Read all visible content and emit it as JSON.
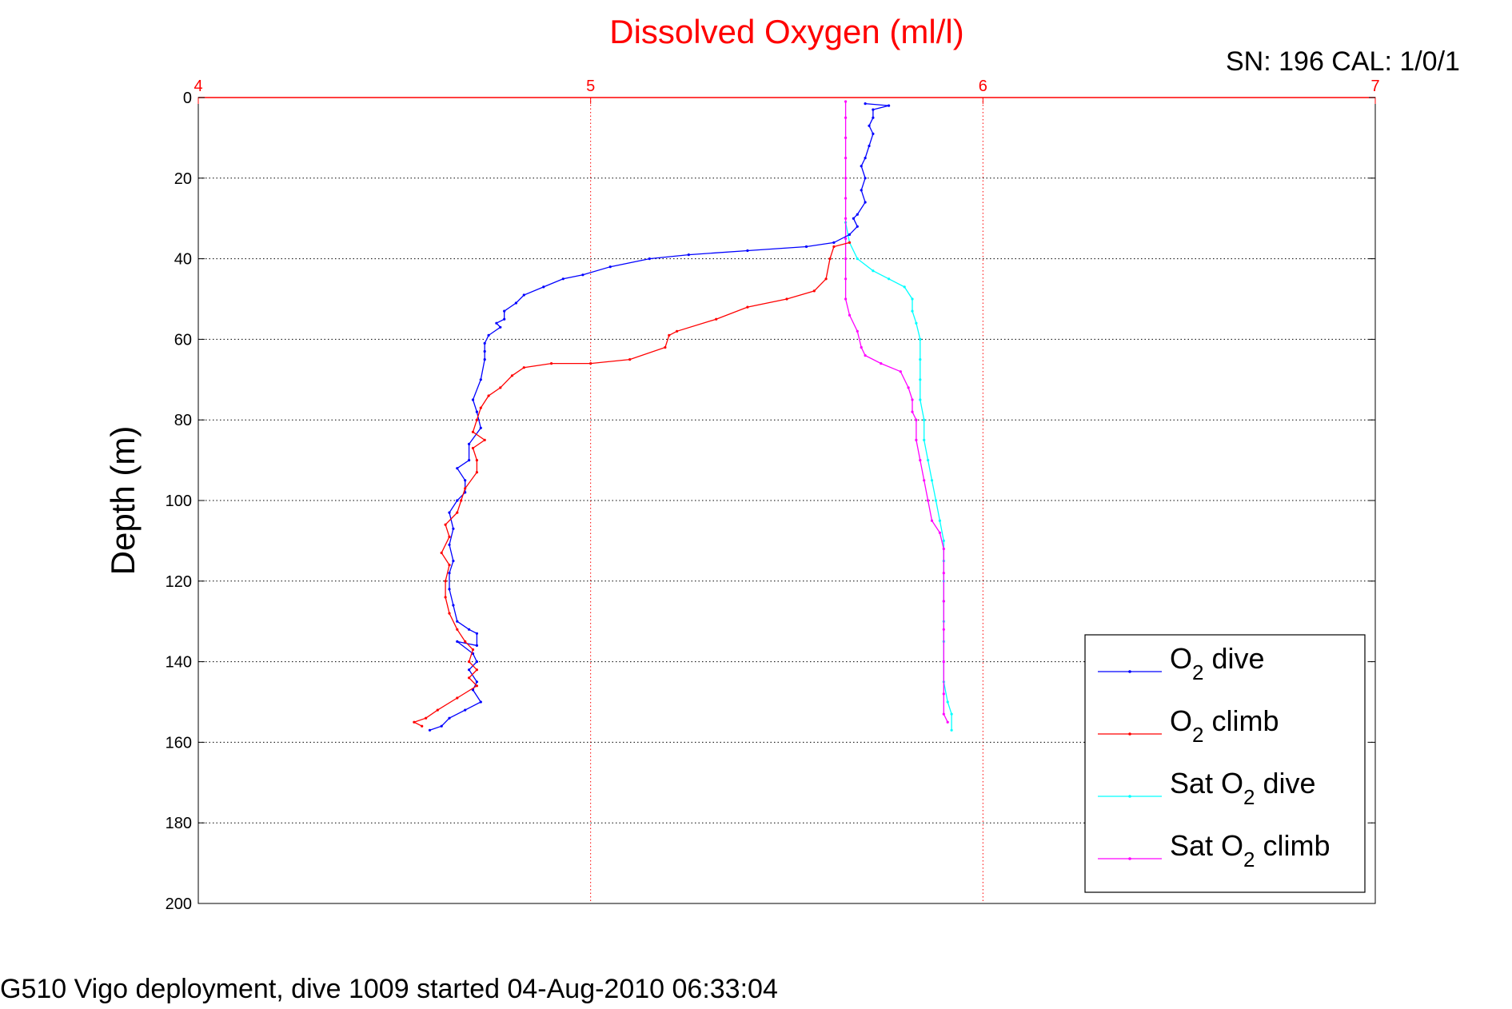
{
  "chart_data": {
    "type": "line",
    "title": "Dissolved Oxygen (ml/l)",
    "serial_text": "SN: 196  CAL: 1/0/1",
    "xlabel": "",
    "ylabel": "Depth (m)",
    "footer": "G510 Vigo deployment, dive 1009 started 04-Aug-2010 06:33:04",
    "xlim": [
      4,
      7
    ],
    "ylim": [
      0,
      200
    ],
    "y_reversed": true,
    "x_axis_position": "top",
    "x_ticks": [
      "4",
      "5",
      "6",
      "7"
    ],
    "y_ticks": [
      "0",
      "20",
      "40",
      "60",
      "80",
      "100",
      "120",
      "140",
      "160",
      "180",
      "200"
    ],
    "grid": true,
    "legend_position": "bottom-right",
    "colors": {
      "title": "#ff0000",
      "top_axis": "#ff0000",
      "grid_x": "#ff0000",
      "grid_y": "#000000"
    },
    "series": [
      {
        "name": "O_2 dive",
        "legend": {
          "pre": "O",
          "sub": "2",
          "post": " dive"
        },
        "color": "#0000ff",
        "points": [
          [
            5.7,
            1.5
          ],
          [
            5.76,
            2
          ],
          [
            5.72,
            3
          ],
          [
            5.72,
            5
          ],
          [
            5.71,
            7
          ],
          [
            5.72,
            9
          ],
          [
            5.71,
            12
          ],
          [
            5.7,
            15
          ],
          [
            5.69,
            17
          ],
          [
            5.7,
            20
          ],
          [
            5.69,
            23
          ],
          [
            5.7,
            26
          ],
          [
            5.68,
            29
          ],
          [
            5.67,
            30
          ],
          [
            5.68,
            32
          ],
          [
            5.66,
            34
          ],
          [
            5.62,
            36
          ],
          [
            5.55,
            37
          ],
          [
            5.4,
            38
          ],
          [
            5.25,
            39
          ],
          [
            5.15,
            40
          ],
          [
            5.05,
            42
          ],
          [
            4.98,
            44
          ],
          [
            4.93,
            45
          ],
          [
            4.88,
            47
          ],
          [
            4.83,
            49
          ],
          [
            4.81,
            51
          ],
          [
            4.78,
            53
          ],
          [
            4.78,
            55
          ],
          [
            4.76,
            56
          ],
          [
            4.77,
            57
          ],
          [
            4.74,
            59
          ],
          [
            4.73,
            61
          ],
          [
            4.73,
            63
          ],
          [
            4.73,
            65
          ],
          [
            4.72,
            70
          ],
          [
            4.7,
            75
          ],
          [
            4.71,
            78
          ],
          [
            4.72,
            82
          ],
          [
            4.69,
            86
          ],
          [
            4.69,
            90
          ],
          [
            4.66,
            92
          ],
          [
            4.68,
            95
          ],
          [
            4.68,
            98
          ],
          [
            4.66,
            100
          ],
          [
            4.64,
            103
          ],
          [
            4.65,
            107
          ],
          [
            4.64,
            111
          ],
          [
            4.65,
            115
          ],
          [
            4.64,
            118
          ],
          [
            4.64,
            122
          ],
          [
            4.65,
            126
          ],
          [
            4.66,
            130
          ],
          [
            4.69,
            132
          ],
          [
            4.71,
            133
          ],
          [
            4.71,
            136
          ],
          [
            4.66,
            135
          ],
          [
            4.7,
            138
          ],
          [
            4.71,
            140
          ],
          [
            4.69,
            142
          ],
          [
            4.71,
            145
          ],
          [
            4.7,
            147
          ],
          [
            4.72,
            150
          ],
          [
            4.68,
            152
          ],
          [
            4.64,
            154
          ],
          [
            4.62,
            156
          ],
          [
            4.59,
            157
          ]
        ]
      },
      {
        "name": "O_2 climb",
        "legend": {
          "pre": "O",
          "sub": "2",
          "post": " climb"
        },
        "color": "#ff0000",
        "points": [
          [
            5.66,
            36
          ],
          [
            5.62,
            37
          ],
          [
            5.61,
            40
          ],
          [
            5.6,
            45
          ],
          [
            5.57,
            48
          ],
          [
            5.5,
            50
          ],
          [
            5.4,
            52
          ],
          [
            5.32,
            55
          ],
          [
            5.22,
            58
          ],
          [
            5.2,
            59
          ],
          [
            5.19,
            62
          ],
          [
            5.1,
            65
          ],
          [
            5.0,
            66
          ],
          [
            4.9,
            66
          ],
          [
            4.83,
            67
          ],
          [
            4.8,
            69
          ],
          [
            4.77,
            72
          ],
          [
            4.74,
            74
          ],
          [
            4.72,
            77
          ],
          [
            4.71,
            80
          ],
          [
            4.7,
            83
          ],
          [
            4.73,
            85
          ],
          [
            4.7,
            87
          ],
          [
            4.71,
            90
          ],
          [
            4.71,
            93
          ],
          [
            4.68,
            97
          ],
          [
            4.67,
            100
          ],
          [
            4.66,
            103
          ],
          [
            4.63,
            106
          ],
          [
            4.64,
            109
          ],
          [
            4.62,
            113
          ],
          [
            4.64,
            116
          ],
          [
            4.63,
            120
          ],
          [
            4.63,
            124
          ],
          [
            4.64,
            128
          ],
          [
            4.66,
            132
          ],
          [
            4.68,
            135
          ],
          [
            4.7,
            137
          ],
          [
            4.69,
            140
          ],
          [
            4.71,
            142
          ],
          [
            4.69,
            144
          ],
          [
            4.71,
            146
          ],
          [
            4.66,
            149
          ],
          [
            4.61,
            152
          ],
          [
            4.58,
            154
          ],
          [
            4.55,
            155
          ],
          [
            4.57,
            156
          ]
        ]
      },
      {
        "name": "Sat O_2 dive",
        "legend": {
          "pre": "Sat O",
          "sub": "2",
          "post": " dive"
        },
        "color": "#00ffff",
        "points": [
          [
            5.65,
            31
          ],
          [
            5.66,
            36
          ],
          [
            5.68,
            40
          ],
          [
            5.72,
            43
          ],
          [
            5.76,
            45
          ],
          [
            5.8,
            47
          ],
          [
            5.82,
            50
          ],
          [
            5.82,
            53
          ],
          [
            5.83,
            56
          ],
          [
            5.84,
            60
          ],
          [
            5.84,
            65
          ],
          [
            5.84,
            70
          ],
          [
            5.84,
            75
          ],
          [
            5.85,
            80
          ],
          [
            5.85,
            85
          ],
          [
            5.86,
            90
          ],
          [
            5.87,
            95
          ],
          [
            5.88,
            100
          ],
          [
            5.89,
            105
          ],
          [
            5.9,
            110
          ],
          [
            5.9,
            115
          ],
          [
            5.9,
            120
          ],
          [
            5.9,
            125
          ],
          [
            5.9,
            130
          ],
          [
            5.9,
            135
          ],
          [
            5.9,
            140
          ],
          [
            5.9,
            145
          ],
          [
            5.91,
            150
          ],
          [
            5.92,
            153
          ],
          [
            5.92,
            157
          ]
        ]
      },
      {
        "name": "Sat O_2 climb",
        "legend": {
          "pre": "Sat O",
          "sub": "2",
          "post": " climb"
        },
        "color": "#ff00ff",
        "points": [
          [
            5.65,
            1
          ],
          [
            5.65,
            5
          ],
          [
            5.65,
            10
          ],
          [
            5.65,
            15
          ],
          [
            5.65,
            20
          ],
          [
            5.65,
            25
          ],
          [
            5.65,
            30
          ],
          [
            5.65,
            35
          ],
          [
            5.65,
            40
          ],
          [
            5.65,
            45
          ],
          [
            5.65,
            50
          ],
          [
            5.66,
            54
          ],
          [
            5.68,
            58
          ],
          [
            5.69,
            62
          ],
          [
            5.7,
            64
          ],
          [
            5.74,
            66
          ],
          [
            5.79,
            68
          ],
          [
            5.81,
            72
          ],
          [
            5.82,
            75
          ],
          [
            5.82,
            78
          ],
          [
            5.83,
            80
          ],
          [
            5.83,
            85
          ],
          [
            5.84,
            90
          ],
          [
            5.85,
            95
          ],
          [
            5.86,
            100
          ],
          [
            5.87,
            105
          ],
          [
            5.89,
            108
          ],
          [
            5.9,
            112
          ],
          [
            5.9,
            118
          ],
          [
            5.9,
            125
          ],
          [
            5.9,
            132
          ],
          [
            5.9,
            140
          ],
          [
            5.9,
            148
          ],
          [
            5.9,
            153
          ],
          [
            5.91,
            155
          ]
        ]
      }
    ]
  }
}
